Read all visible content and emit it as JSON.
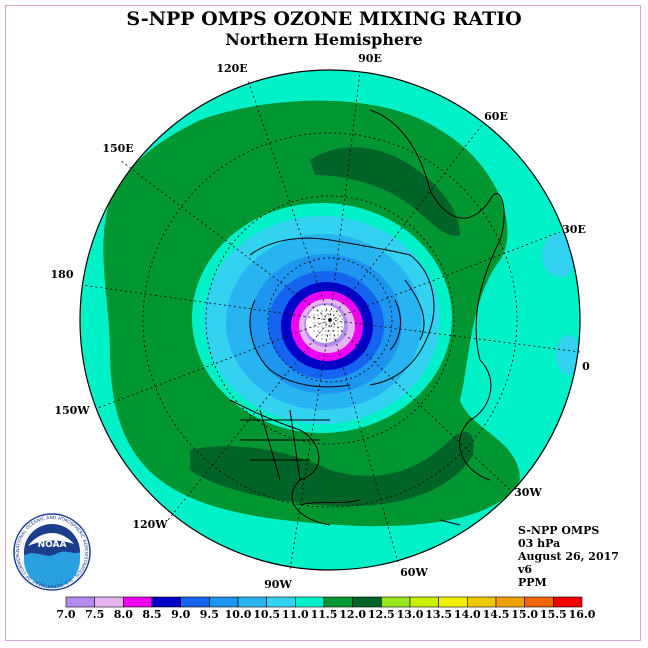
{
  "title": "S-NPP OMPS OZONE MIXING RATIO",
  "subtitle": "Northern Hemisphere",
  "longitude_labels": [
    "90E",
    "60E",
    "30E",
    "0",
    "30W",
    "60W",
    "90W",
    "120W",
    "150W",
    "180",
    "150E",
    "120E"
  ],
  "info": {
    "instrument": "S-NPP OMPS",
    "level": "03 hPa",
    "date": "August 26, 2017",
    "version": "v6",
    "units": "PPM"
  },
  "logo": {
    "text": "NOAA",
    "ring_text": "NATIONAL OCEANIC AND ATMOSPHERIC ADMINISTRATION · U.S. DEPARTMENT OF COMMERCE"
  },
  "colorbar": {
    "labels": [
      "7.0",
      "7.5",
      "8.0",
      "8.5",
      "9.0",
      "9.5",
      "10.0",
      "10.5",
      "11.0",
      "11.5",
      "12.0",
      "12.5",
      "13.0",
      "13.5",
      "14.0",
      "14.5",
      "15.0",
      "15.5",
      "16.0"
    ],
    "colors": [
      "#b48cf0",
      "#e6b4f0",
      "#f000f0",
      "#0000c8",
      "#1464f0",
      "#1e96f0",
      "#28b4f0",
      "#32d2f0",
      "#00f0c8",
      "#009632",
      "#006428",
      "#96e61e",
      "#c8f000",
      "#f0f000",
      "#f0c800",
      "#f0a000",
      "#f06400",
      "#f00000",
      "#a05028"
    ]
  }
}
